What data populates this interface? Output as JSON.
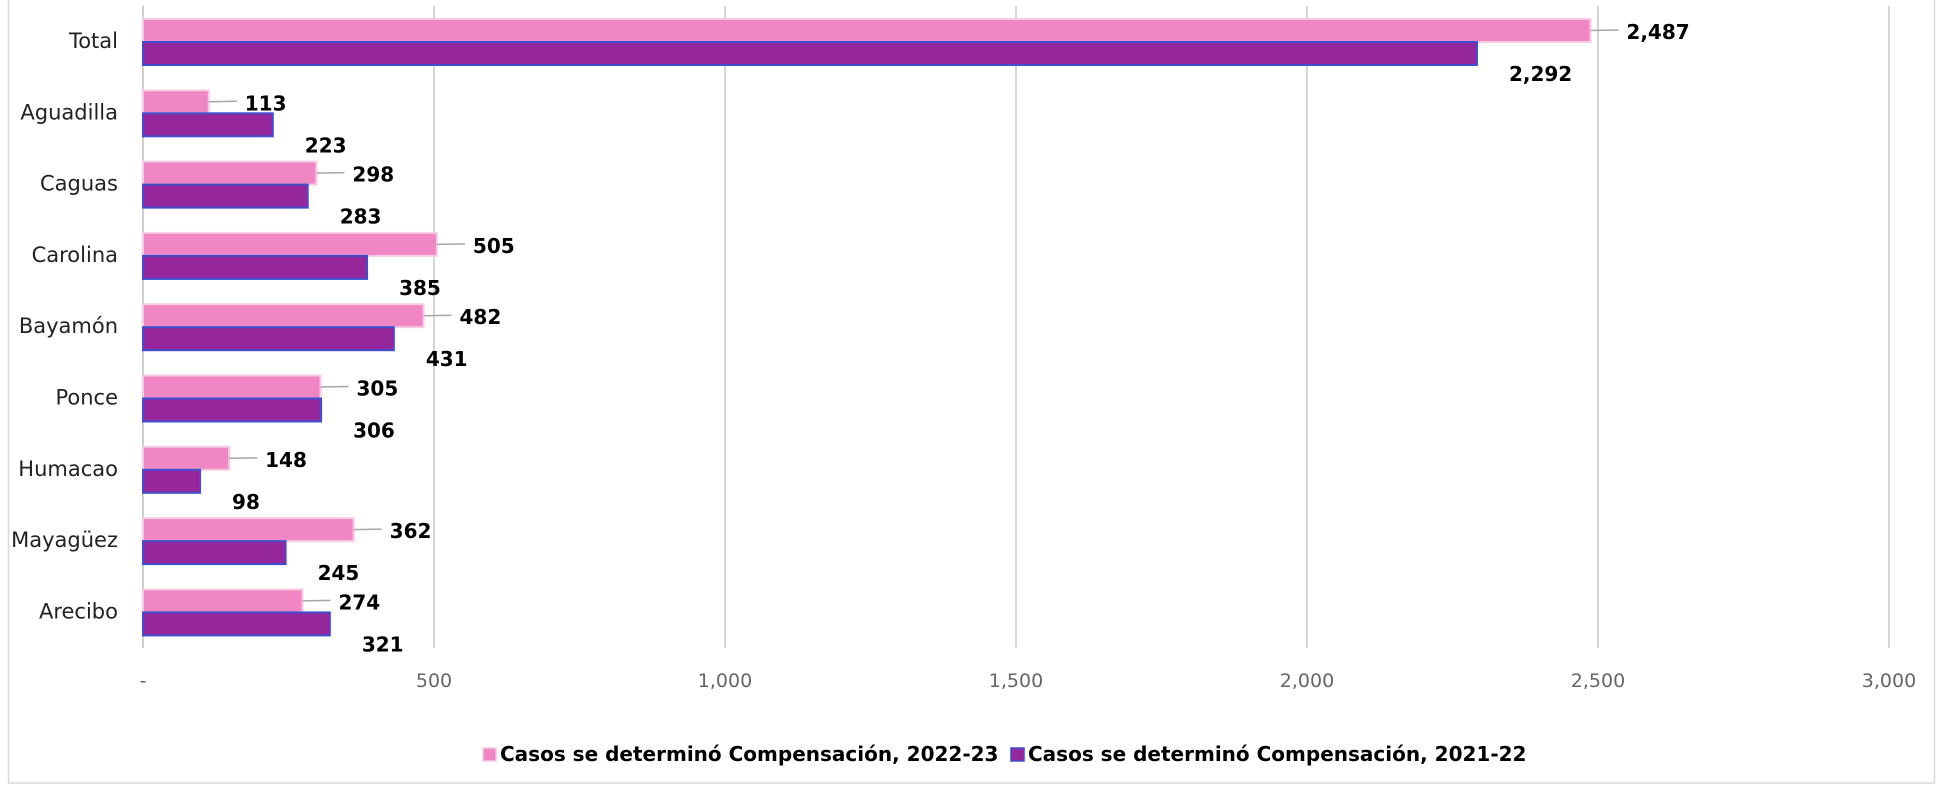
{
  "chart_data": {
    "type": "bar",
    "orientation": "horizontal",
    "categories": [
      "Total",
      "Aguadilla",
      "Caguas",
      "Carolina",
      "Bayamón",
      "Ponce",
      "Humacao",
      "Mayagüez",
      "Arecibo"
    ],
    "series": [
      {
        "name": "Casos se determinó Compensación, 2022-23",
        "color": "#f087c4",
        "values": [
          2487,
          113,
          298,
          505,
          482,
          305,
          148,
          362,
          274
        ],
        "labels": [
          "2,487",
          "113",
          "298",
          "505",
          "482",
          "305",
          "148",
          "362",
          "274"
        ]
      },
      {
        "name": "Casos se determinó Compensación, 2021-22",
        "color": "#96269b",
        "values": [
          2292,
          223,
          283,
          385,
          431,
          306,
          98,
          245,
          321
        ],
        "labels": [
          "2,292",
          "223",
          "283",
          "385",
          "431",
          "306",
          "98",
          "245",
          "321"
        ]
      }
    ],
    "xlim": [
      0,
      3000
    ],
    "xticks": [
      0,
      500,
      1000,
      1500,
      2000,
      2500,
      3000
    ],
    "xtick_labels": [
      "-",
      "500",
      "1,000",
      "1,500",
      "2,000",
      "2,500",
      "3,000"
    ],
    "grid": true,
    "legend_position": "bottom",
    "title": "",
    "xlabel": "",
    "ylabel": ""
  }
}
